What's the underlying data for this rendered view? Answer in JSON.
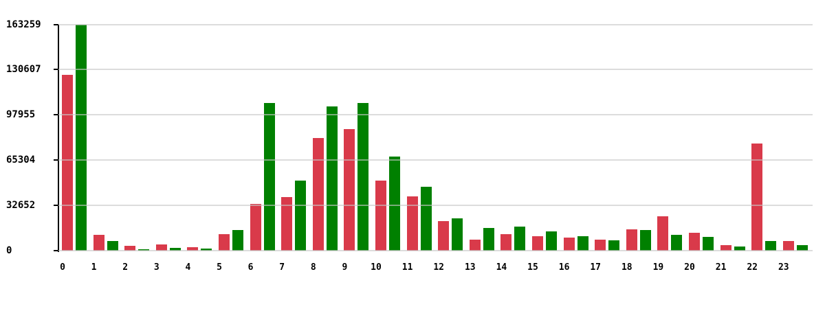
{
  "chart_data": {
    "type": "bar",
    "title": "",
    "xlabel": "",
    "ylabel": "",
    "categories": [
      "0",
      "1",
      "2",
      "3",
      "4",
      "5",
      "6",
      "7",
      "8",
      "9",
      "10",
      "11",
      "12",
      "13",
      "14",
      "15",
      "16",
      "17",
      "18",
      "19",
      "20",
      "21",
      "22",
      "23"
    ],
    "series": [
      {
        "name": "red",
        "color": "#d93a4a",
        "values": [
          126700,
          11400,
          3300,
          4500,
          2500,
          11800,
          33800,
          38400,
          81100,
          87900,
          50300,
          39100,
          21300,
          8100,
          12000,
          10300,
          9400,
          7900,
          15500,
          24800,
          12900,
          4100,
          77500,
          6900
        ]
      },
      {
        "name": "green",
        "color": "#008000",
        "values": [
          163259,
          6700,
          1100,
          2000,
          1500,
          14900,
          106300,
          50700,
          104200,
          106600,
          67700,
          46200,
          23500,
          16200,
          17300,
          13700,
          10300,
          7400,
          14900,
          11400,
          10100,
          2800,
          7100,
          4100
        ]
      }
    ],
    "ylim": [
      0,
      163259
    ],
    "yticks": [
      0,
      32652,
      65304,
      97955,
      130607,
      163259
    ],
    "grid": true,
    "legend_position": "none"
  },
  "colors": {
    "background": "#ffffff",
    "grid": "#c6c6c6",
    "axis": "#000000",
    "text": "#000000"
  }
}
